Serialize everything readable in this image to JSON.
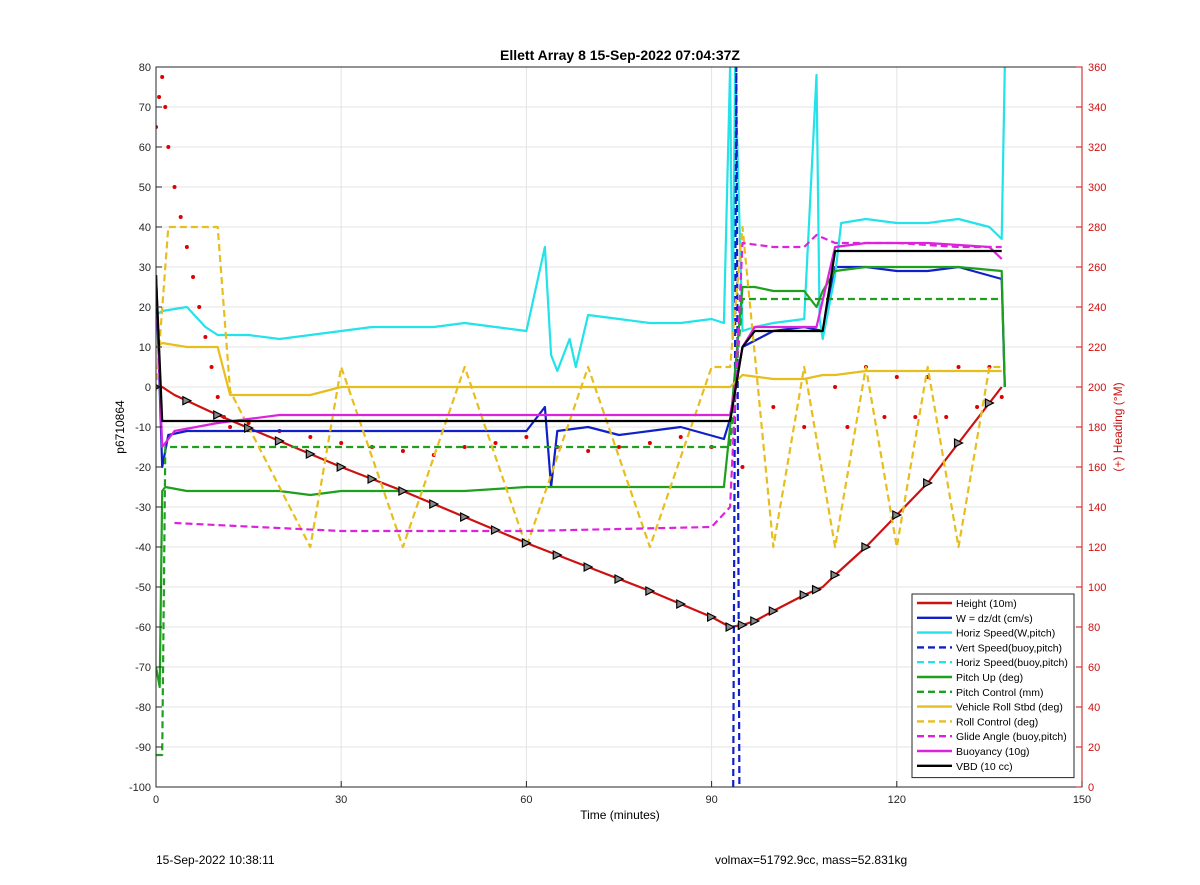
{
  "chart_data": {
    "type": "line",
    "title": "Ellett Array 8 15-Sep-2022 07:04:37Z",
    "xlabel": "Time (minutes)",
    "ylabel": "p6710864",
    "ylabel_right": "(+) Heading (°M)",
    "xlim": [
      0,
      150
    ],
    "ylim": [
      -100,
      80
    ],
    "ylim_right": [
      0,
      360
    ],
    "x_ticks": [
      0,
      30,
      60,
      90,
      120,
      150
    ],
    "y_ticks": [
      -100,
      -90,
      -80,
      -70,
      -60,
      -50,
      -40,
      -30,
      -20,
      -10,
      0,
      10,
      20,
      30,
      40,
      50,
      60,
      70,
      80
    ],
    "y_ticks_right": [
      0,
      20,
      40,
      60,
      80,
      100,
      120,
      140,
      160,
      180,
      200,
      220,
      240,
      260,
      280,
      300,
      320,
      340,
      360
    ],
    "grid": true,
    "legend_position": "bottom-right",
    "series": [
      {
        "name": "Height (10m)",
        "color": "#cc1111",
        "style": "solid",
        "x": [
          0,
          1,
          3,
          10,
          20,
          30,
          40,
          50,
          60,
          70,
          80,
          90,
          93,
          95,
          97,
          100,
          105,
          108,
          110,
          115,
          120,
          125,
          130,
          135,
          137
        ],
        "y": [
          0,
          0,
          -2,
          -7,
          -13.5,
          -20,
          -26,
          -32.5,
          -39,
          -45,
          -51,
          -57.5,
          -60,
          -59.5,
          -58.5,
          -56,
          -52,
          -50,
          -47,
          -40,
          -32,
          -24,
          -14,
          -4,
          0
        ]
      },
      {
        "name": "W = dz/dt (cm/s)",
        "color": "#1020c8",
        "style": "solid",
        "x": [
          0,
          1,
          2,
          5,
          10,
          20,
          30,
          40,
          50,
          60,
          63,
          64,
          65,
          70,
          75,
          80,
          85,
          92,
          93,
          95,
          100,
          105,
          108,
          110,
          115,
          120,
          125,
          130,
          137,
          137.5
        ],
        "y": [
          28,
          -20,
          -12,
          -11,
          -11,
          -11,
          -11,
          -11,
          -11,
          -11,
          -5,
          -25,
          -11,
          -10,
          -12,
          -11,
          -10,
          -13,
          -8,
          10,
          14,
          15,
          14,
          30,
          30,
          29,
          29,
          30,
          27,
          0
        ]
      },
      {
        "name": "Horiz Speed(W,pitch)",
        "color": "#22e2ea",
        "style": "solid",
        "x": [
          0,
          1,
          5,
          8,
          10,
          15,
          20,
          25,
          30,
          35,
          40,
          45,
          50,
          55,
          60,
          63,
          64,
          65,
          67,
          68,
          70,
          75,
          80,
          85,
          90,
          92,
          93,
          93.4,
          93.8,
          95,
          97,
          100,
          105,
          107,
          107.5,
          108,
          110,
          111,
          115,
          120,
          125,
          130,
          135,
          137,
          137.5
        ],
        "y": [
          18,
          19,
          20,
          15,
          13,
          13,
          12,
          13,
          14,
          15,
          15,
          15,
          16,
          15,
          14,
          35,
          8,
          4,
          12,
          5,
          18,
          17,
          16,
          16,
          17,
          16,
          80,
          12,
          80,
          14,
          15,
          16,
          17,
          78,
          17,
          12,
          28,
          41,
          42,
          41,
          41,
          42,
          40,
          37,
          80
        ]
      },
      {
        "name": "Vert Speed(buoy,pitch)",
        "color": "#1020c8",
        "style": "dashed",
        "x": [
          93.5,
          94,
          94.5
        ],
        "y": [
          -100,
          80,
          -100
        ]
      },
      {
        "name": "Horiz Speed(buoy,pitch)",
        "color": "#22e2ea",
        "style": "dashed",
        "x": [],
        "y": []
      },
      {
        "name": "Pitch Up (deg)",
        "color": "#1ea01e",
        "style": "solid",
        "x": [
          0,
          0.6,
          1,
          1.5,
          5,
          20,
          25,
          30,
          40,
          50,
          60,
          70,
          80,
          92,
          93,
          95,
          97,
          100,
          105,
          107,
          108,
          110,
          115,
          125,
          130,
          137,
          137.5
        ],
        "y": [
          -70,
          -75,
          -26,
          -25,
          -26,
          -26,
          -27,
          -26,
          -26,
          -26,
          -25,
          -25,
          -25,
          -25,
          -10,
          25,
          25,
          24,
          24,
          20,
          24,
          29,
          30,
          30,
          30,
          29,
          0
        ]
      },
      {
        "name": "Pitch Control (mm)",
        "color": "#1ea01e",
        "style": "dashed",
        "x": [
          0,
          1,
          1.5,
          92,
          93,
          95,
          108,
          110,
          137
        ],
        "y": [
          -92,
          -92,
          -15,
          -15,
          -15,
          22,
          22,
          22,
          22
        ]
      },
      {
        "name": "Vehicle Roll Stbd (deg)",
        "color": "#e6be1e",
        "style": "solid",
        "x": [
          0,
          1,
          5,
          10,
          12,
          15,
          25,
          30,
          40,
          50,
          60,
          70,
          80,
          90,
          92,
          93,
          95,
          100,
          105,
          108,
          110,
          115,
          120,
          125,
          130,
          135,
          137
        ],
        "y": [
          10,
          11,
          10,
          10,
          -2,
          -2,
          -2,
          0,
          0,
          0,
          0,
          0,
          0,
          0,
          0,
          0,
          3,
          2,
          2,
          3,
          3,
          4,
          4,
          4,
          4,
          4,
          4
        ]
      },
      {
        "name": "Roll Control (deg)",
        "color": "#e6be1e",
        "style": "dashed",
        "x": [
          0,
          2,
          10,
          12,
          25,
          30,
          40,
          50,
          60,
          70,
          80,
          90,
          93,
          95,
          100,
          105,
          110,
          115,
          120,
          125,
          130,
          135,
          137
        ],
        "y": [
          -1,
          40,
          40,
          -1,
          -40,
          5,
          -40,
          5,
          -40,
          5,
          -40,
          5,
          5,
          40,
          -40,
          5,
          -40,
          5,
          -40,
          5,
          -40,
          5,
          5
        ]
      },
      {
        "name": "Glide Angle (buoy,pitch)",
        "color": "#dd22dd",
        "style": "dashed",
        "x": [
          3,
          30,
          60,
          90,
          93,
          95,
          100,
          105,
          107,
          110,
          120,
          130,
          137
        ],
        "y": [
          -34,
          -36,
          -36,
          -35,
          -30,
          36,
          35,
          35,
          38,
          36,
          36,
          35,
          35
        ]
      },
      {
        "name": "Buoyancy (10g)",
        "color": "#dd22dd",
        "style": "solid",
        "x": [
          0,
          1,
          3,
          10,
          20,
          40,
          60,
          80,
          92,
          93,
          95,
          97,
          105,
          107,
          110,
          115,
          125,
          135,
          137
        ],
        "y": [
          28,
          -15,
          -11,
          -9,
          -7,
          -7,
          -7,
          -7,
          -7,
          -7,
          10,
          15,
          15,
          15,
          35,
          36,
          36,
          35,
          32
        ]
      },
      {
        "name": "VBD (10 cc)",
        "color": "#000000",
        "style": "solid",
        "x": [
          0,
          1,
          2,
          10,
          20,
          40,
          60,
          80,
          92,
          93,
          95,
          97,
          107,
          108,
          110,
          137
        ],
        "y": [
          28,
          -8.5,
          -8.5,
          -8.5,
          -8.5,
          -8.5,
          -8.5,
          -8.5,
          -8.5,
          -8.5,
          10,
          14,
          14,
          14,
          34,
          34
        ]
      }
    ],
    "heading_dots": {
      "color": "#dd0000",
      "x": [
        0,
        0.5,
        1,
        1.5,
        2,
        3,
        4,
        5,
        6,
        7,
        8,
        9,
        10,
        11,
        12,
        15,
        20,
        25,
        30,
        35,
        40,
        45,
        50,
        55,
        60,
        65,
        70,
        75,
        80,
        85,
        90,
        95,
        100,
        105,
        110,
        112,
        115,
        118,
        120,
        123,
        125,
        128,
        130,
        133,
        135,
        137
      ],
      "y": [
        330,
        345,
        355,
        340,
        320,
        300,
        285,
        270,
        255,
        240,
        225,
        210,
        195,
        185,
        180,
        182,
        178,
        175,
        172,
        170,
        168,
        166,
        170,
        172,
        175,
        170,
        168,
        170,
        172,
        175,
        170,
        160,
        190,
        180,
        200,
        180,
        210,
        185,
        205,
        185,
        205,
        185,
        210,
        190,
        210,
        195
      ]
    },
    "height_markers_x": [
      0,
      5,
      10,
      15,
      20,
      25,
      30,
      35,
      40,
      45,
      50,
      55,
      60,
      65,
      70,
      75,
      80,
      85,
      90,
      93,
      95,
      97,
      100,
      105,
      107,
      110,
      115,
      120,
      125,
      130,
      135
    ]
  },
  "footer": {
    "left_text": "15-Sep-2022 10:38:11",
    "right_text": "volmax=51792.9cc, mass=52.831kg"
  }
}
